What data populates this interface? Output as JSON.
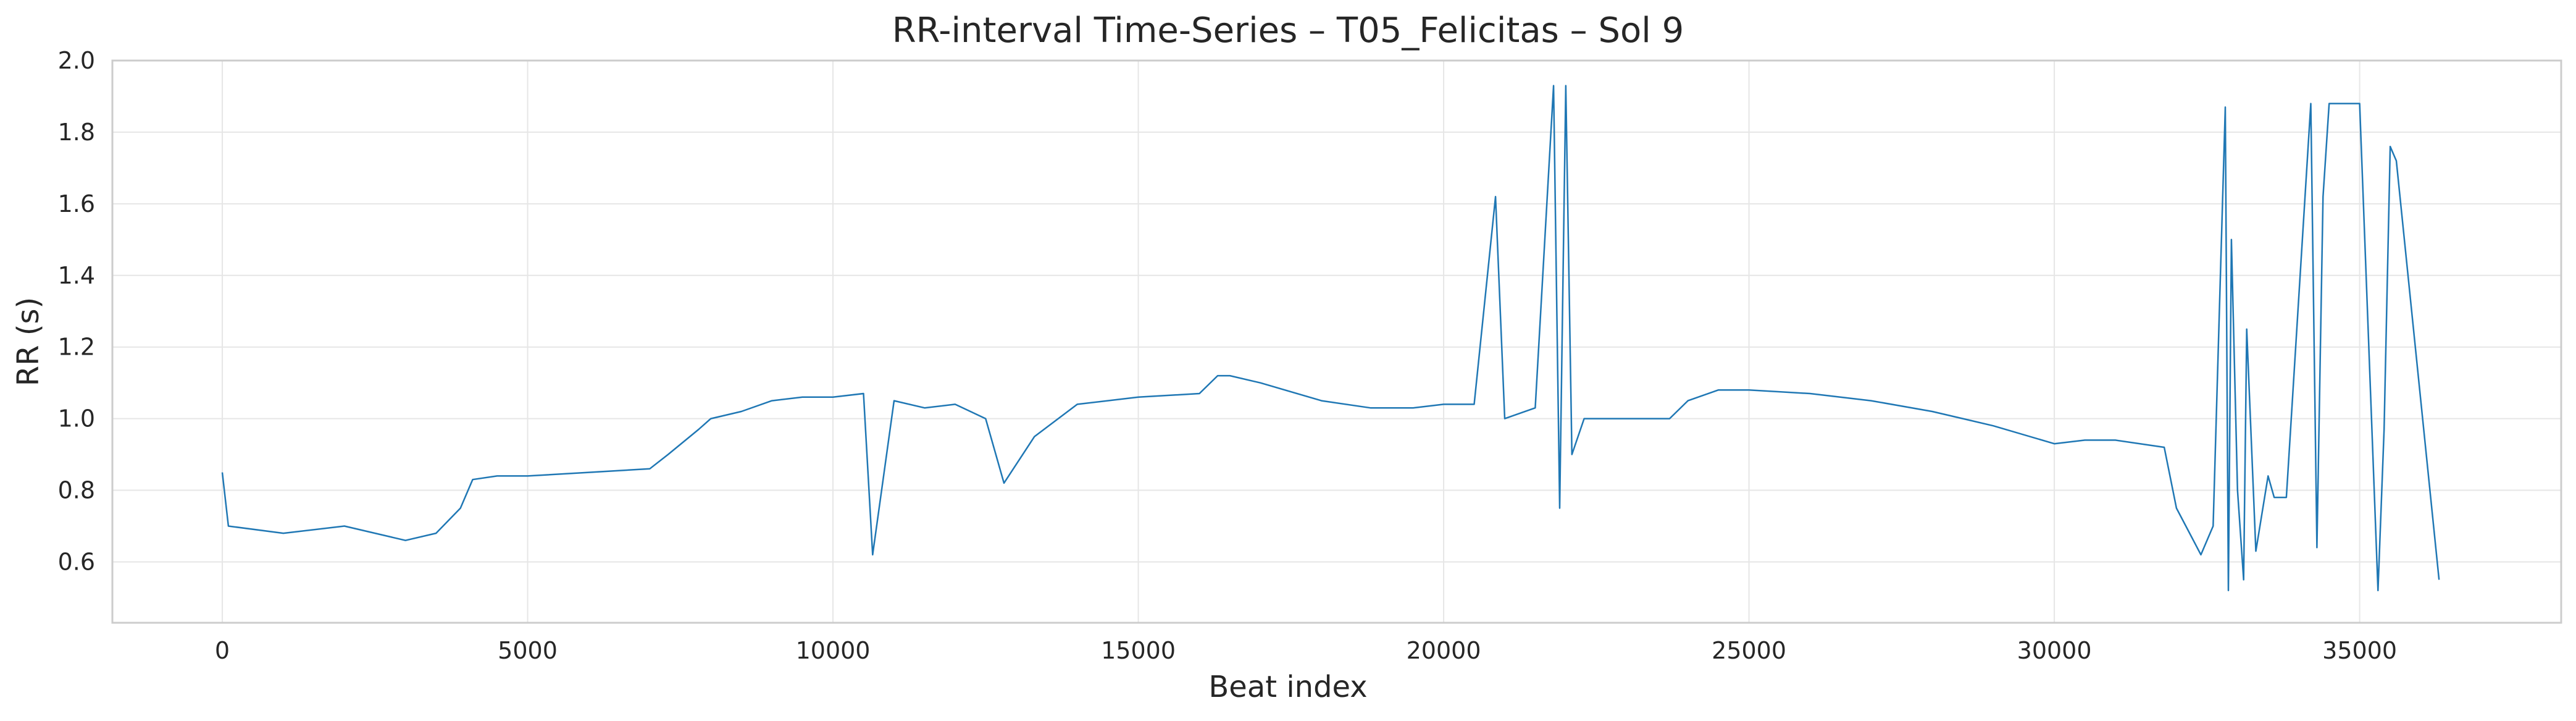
{
  "chart_data": {
    "type": "line",
    "title": "RR-interval Time-Series – T05_Felicitas – Sol 9",
    "xlabel": "Beat index",
    "ylabel": "RR (s)",
    "xlim": [
      -1800,
      38300
    ],
    "ylim": [
      0.43,
      2.0
    ],
    "xticks": [
      0,
      5000,
      10000,
      15000,
      20000,
      25000,
      30000,
      35000
    ],
    "yticks": [
      0.6,
      0.8,
      1.0,
      1.2,
      1.4,
      1.6,
      1.8,
      2.0
    ],
    "xtick_labels": [
      "0",
      "5000",
      "10000",
      "15000",
      "20000",
      "25000",
      "30000",
      "35000"
    ],
    "ytick_labels": [
      "0.6",
      "0.8",
      "1.0",
      "1.2",
      "1.4",
      "1.6",
      "1.8",
      "2.0"
    ],
    "grid": true,
    "series_color": "#1f77b4",
    "series": [
      {
        "x": [
          0,
          100,
          1000,
          2000,
          3000,
          3500,
          3900,
          4100,
          4500,
          5000,
          6000,
          7000,
          7300,
          7800,
          8000,
          8500,
          9000,
          9500,
          10000,
          10500,
          10650,
          11000,
          11500,
          12000,
          12500,
          12800,
          13300,
          14000,
          15000,
          16000,
          16300,
          16500,
          17000,
          18000,
          18800,
          19500,
          20000,
          20500,
          20850,
          21000,
          21500,
          21800,
          21900,
          22000,
          22100,
          22300,
          23000,
          23700,
          24000,
          24500,
          25000,
          26000,
          27000,
          28000,
          29000,
          30000,
          30500,
          31000,
          31800,
          32000,
          32400,
          32600,
          32800,
          32850,
          32900,
          33000,
          33100,
          33150,
          33300,
          33500,
          33600,
          33700,
          33800,
          34200,
          34300,
          34400,
          34500,
          35000,
          35300,
          35400,
          35500,
          35600,
          36300
        ],
        "y": [
          0.85,
          0.7,
          0.68,
          0.7,
          0.66,
          0.68,
          0.75,
          0.83,
          0.84,
          0.84,
          0.85,
          0.86,
          0.9,
          0.97,
          1.0,
          1.02,
          1.05,
          1.06,
          1.06,
          1.07,
          0.62,
          1.05,
          1.03,
          1.04,
          1.0,
          0.82,
          0.95,
          1.04,
          1.06,
          1.07,
          1.12,
          1.12,
          1.1,
          1.05,
          1.03,
          1.03,
          1.04,
          1.04,
          1.62,
          1.0,
          1.03,
          1.93,
          0.75,
          1.93,
          0.9,
          1.0,
          1.0,
          1.0,
          1.05,
          1.08,
          1.08,
          1.07,
          1.05,
          1.02,
          0.98,
          0.93,
          0.94,
          0.94,
          0.92,
          0.75,
          0.62,
          0.7,
          1.87,
          0.52,
          1.5,
          0.8,
          0.55,
          1.25,
          0.63,
          0.84,
          0.78,
          0.78,
          0.78,
          1.88,
          0.64,
          1.62,
          1.88,
          1.88,
          0.52,
          0.97,
          1.76,
          1.72,
          0.55
        ]
      }
    ]
  }
}
